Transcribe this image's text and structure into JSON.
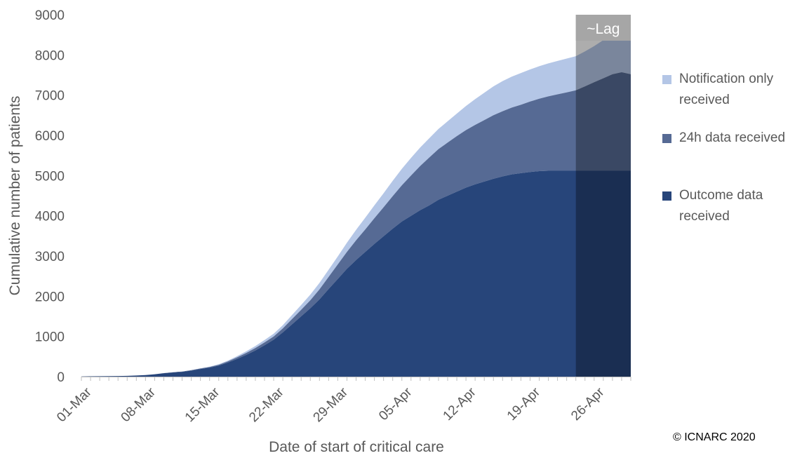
{
  "chart_data": {
    "type": "area",
    "stacked": true,
    "xlabel": "Date of start of critical care",
    "ylabel": "Cumulative number of patients",
    "ylim": [
      0,
      9000
    ],
    "yticks": [
      0,
      1000,
      2000,
      3000,
      4000,
      5000,
      6000,
      7000,
      8000,
      9000
    ],
    "x_tick_labels": [
      "01-Mar",
      "08-Mar",
      "15-Mar",
      "22-Mar",
      "29-Mar",
      "05-Apr",
      "12-Apr",
      "19-Apr",
      "26-Apr"
    ],
    "x": [
      "01-Mar",
      "02-Mar",
      "03-Mar",
      "04-Mar",
      "05-Mar",
      "06-Mar",
      "07-Mar",
      "08-Mar",
      "09-Mar",
      "10-Mar",
      "11-Mar",
      "12-Mar",
      "13-Mar",
      "14-Mar",
      "15-Mar",
      "16-Mar",
      "17-Mar",
      "18-Mar",
      "19-Mar",
      "20-Mar",
      "21-Mar",
      "22-Mar",
      "23-Mar",
      "24-Mar",
      "25-Mar",
      "26-Mar",
      "27-Mar",
      "28-Mar",
      "29-Mar",
      "30-Mar",
      "31-Mar",
      "01-Apr",
      "02-Apr",
      "03-Apr",
      "04-Apr",
      "05-Apr",
      "06-Apr",
      "07-Apr",
      "08-Apr",
      "09-Apr",
      "10-Apr",
      "11-Apr",
      "12-Apr",
      "13-Apr",
      "14-Apr",
      "15-Apr",
      "16-Apr",
      "17-Apr",
      "18-Apr",
      "19-Apr",
      "20-Apr",
      "21-Apr",
      "22-Apr",
      "23-Apr",
      "24-Apr",
      "25-Apr",
      "26-Apr",
      "27-Apr",
      "28-Apr",
      "29-Apr",
      "30-Apr"
    ],
    "lag_start": "24-Apr",
    "lag_label": "~Lag",
    "series": [
      {
        "name": "Outcome data received",
        "color": "#27457A",
        "values": [
          5,
          8,
          10,
          12,
          15,
          20,
          28,
          40,
          60,
          85,
          105,
          120,
          150,
          190,
          225,
          275,
          350,
          440,
          540,
          650,
          780,
          920,
          1100,
          1300,
          1500,
          1700,
          1920,
          2180,
          2430,
          2680,
          2900,
          3100,
          3300,
          3490,
          3680,
          3860,
          4000,
          4140,
          4260,
          4400,
          4500,
          4600,
          4700,
          4780,
          4850,
          4920,
          4980,
          5030,
          5060,
          5090,
          5110,
          5120,
          5120,
          5120,
          5120,
          5120,
          5120,
          5120,
          5120,
          5120,
          5120
        ]
      },
      {
        "name": "24h data received",
        "color": "#566A94",
        "values": [
          0,
          0,
          0,
          0,
          0,
          0,
          0,
          0,
          0,
          2,
          5,
          8,
          10,
          12,
          15,
          20,
          30,
          40,
          50,
          60,
          70,
          80,
          100,
          130,
          160,
          200,
          250,
          300,
          360,
          420,
          490,
          560,
          640,
          720,
          810,
          900,
          1000,
          1100,
          1190,
          1260,
          1320,
          1380,
          1430,
          1480,
          1530,
          1580,
          1620,
          1660,
          1700,
          1750,
          1800,
          1850,
          1900,
          1950,
          2000,
          2100,
          2200,
          2300,
          2400,
          2450,
          2400
        ]
      },
      {
        "name": "Notification only received",
        "color": "#B4C6E6",
        "values": [
          0,
          0,
          0,
          0,
          0,
          0,
          0,
          0,
          0,
          0,
          0,
          0,
          0,
          5,
          10,
          15,
          20,
          30,
          40,
          50,
          60,
          70,
          80,
          100,
          120,
          140,
          160,
          180,
          200,
          230,
          260,
          290,
          320,
          350,
          380,
          410,
          440,
          460,
          480,
          500,
          530,
          560,
          600,
          640,
          680,
          720,
          750,
          770,
          790,
          800,
          810,
          820,
          830,
          840,
          850,
          870,
          900,
          950,
          1000,
          1050,
          1100
        ]
      }
    ],
    "legend": [
      "Notification only received",
      "24h data received",
      "Outcome data received"
    ],
    "legend_position": "right",
    "grid": false
  },
  "legend_labels": {
    "notification": "Notification only received",
    "h24": "24h data received",
    "outcome": "Outcome data received"
  },
  "copyright": "© ICNARC 2020"
}
